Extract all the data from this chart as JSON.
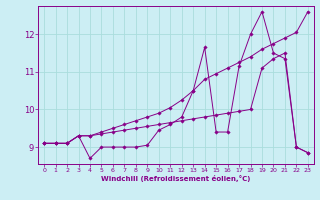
{
  "xlabel": "Windchill (Refroidissement éolien,°C)",
  "bg_color": "#cceef4",
  "grid_color": "#aadddd",
  "line_color": "#880088",
  "x_ticks": [
    0,
    1,
    2,
    3,
    4,
    5,
    6,
    7,
    8,
    9,
    10,
    11,
    12,
    13,
    14,
    15,
    16,
    17,
    18,
    19,
    20,
    21,
    22,
    23
  ],
  "ylim": [
    8.55,
    12.75
  ],
  "xlim": [
    -0.5,
    23.5
  ],
  "y_ticks": [
    9,
    10,
    11,
    12
  ],
  "line1_x": [
    0,
    1,
    2,
    3,
    4,
    5,
    6,
    7,
    8,
    9,
    10,
    11,
    12,
    13,
    14,
    15,
    16,
    17,
    18,
    19,
    20,
    21,
    22,
    23
  ],
  "line1_y": [
    9.1,
    9.1,
    9.1,
    9.3,
    8.7,
    9.0,
    9.0,
    9.0,
    9.0,
    9.05,
    9.45,
    9.6,
    9.8,
    10.5,
    11.65,
    9.4,
    9.4,
    11.15,
    12.0,
    12.6,
    11.5,
    11.35,
    9.0,
    8.85
  ],
  "line2_x": [
    0,
    1,
    2,
    3,
    4,
    5,
    6,
    7,
    8,
    9,
    10,
    11,
    12,
    13,
    14,
    15,
    16,
    17,
    18,
    19,
    20,
    21,
    22,
    23
  ],
  "line2_y": [
    9.1,
    9.1,
    9.1,
    9.3,
    9.3,
    9.4,
    9.5,
    9.6,
    9.7,
    9.8,
    9.9,
    10.05,
    10.25,
    10.5,
    10.8,
    10.95,
    11.1,
    11.25,
    11.4,
    11.6,
    11.75,
    11.9,
    12.05,
    12.6
  ],
  "line3_x": [
    0,
    1,
    2,
    3,
    4,
    5,
    6,
    7,
    8,
    9,
    10,
    11,
    12,
    13,
    14,
    15,
    16,
    17,
    18,
    19,
    20,
    21,
    22,
    23
  ],
  "line3_y": [
    9.1,
    9.1,
    9.1,
    9.3,
    9.3,
    9.35,
    9.4,
    9.45,
    9.5,
    9.55,
    9.6,
    9.65,
    9.7,
    9.75,
    9.8,
    9.85,
    9.9,
    9.95,
    10.0,
    11.1,
    11.35,
    11.5,
    9.0,
    8.85
  ]
}
